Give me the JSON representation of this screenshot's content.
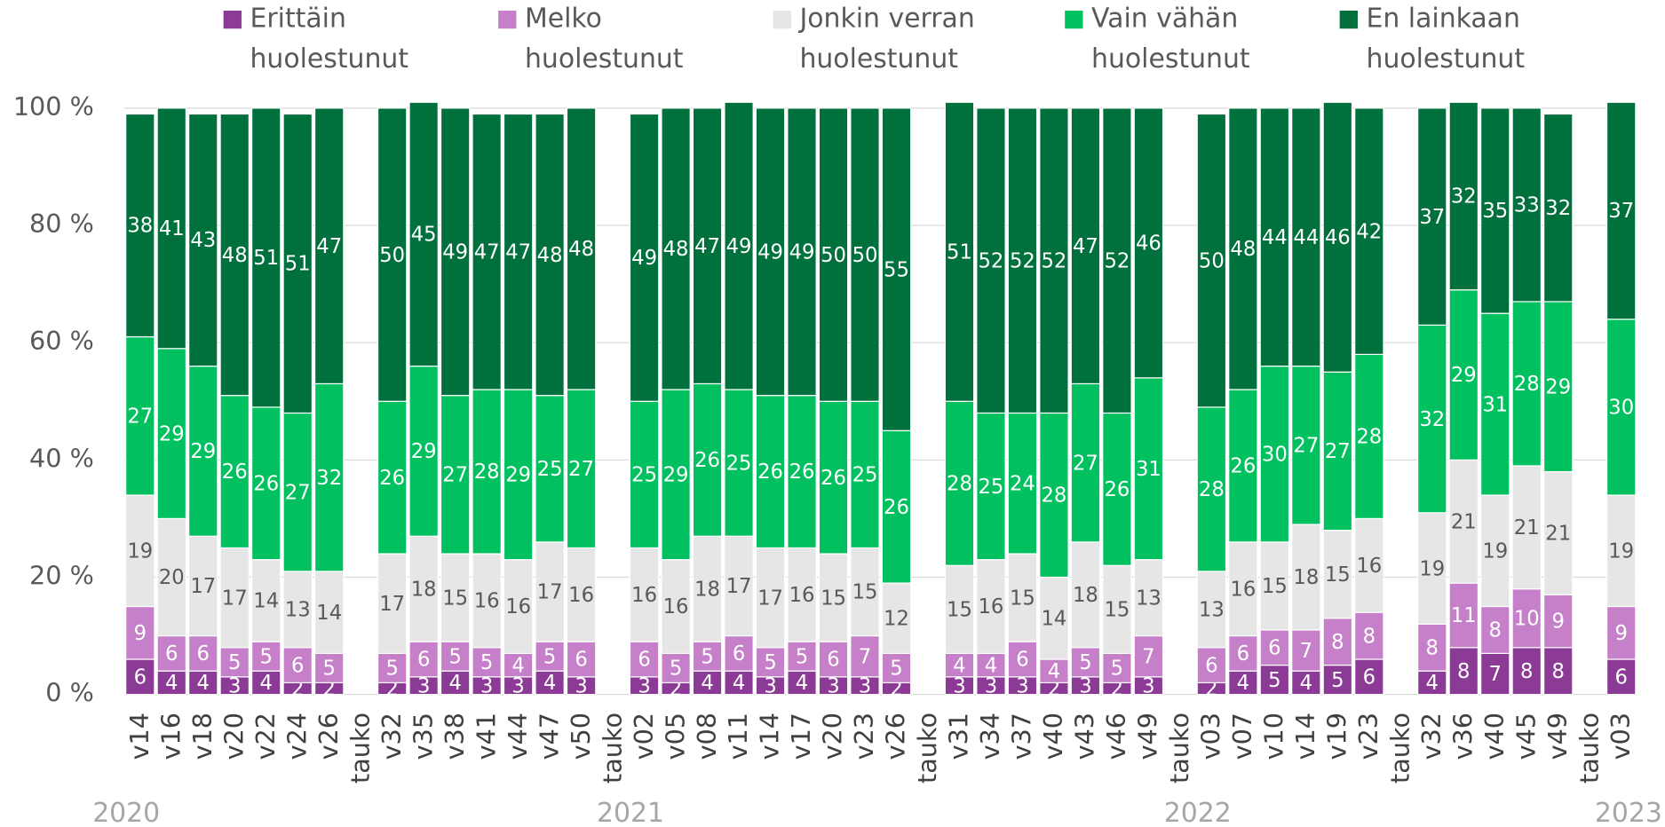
{
  "chart_data": {
    "type": "stacked_bar",
    "categories": [
      "v14",
      "v16",
      "v18",
      "v20",
      "v22",
      "v24",
      "v26",
      "tauko",
      "v32",
      "v35",
      "v38",
      "v41",
      "v44",
      "v47",
      "v50",
      "tauko",
      "v02",
      "v05",
      "v08",
      "v11",
      "v14",
      "v17",
      "v20",
      "v23",
      "v26",
      "tauko",
      "v31",
      "v34",
      "v37",
      "v40",
      "v43",
      "v46",
      "v49",
      "tauko",
      "v03",
      "v07",
      "v10",
      "v14",
      "v19",
      "v23",
      "tauko",
      "v32",
      "v36",
      "v40",
      "v45",
      "v49",
      "tauko",
      "v03"
    ],
    "year_labels": [
      "2020",
      "2021",
      "2022",
      "2023"
    ],
    "ylim": [
      0,
      100
    ],
    "yticks": [
      {
        "value": 0,
        "label": "0 %"
      },
      {
        "value": 20,
        "label": "20 %"
      },
      {
        "value": 40,
        "label": "40 %"
      },
      {
        "value": 60,
        "label": "60 %"
      },
      {
        "value": 80,
        "label": "80 %"
      },
      {
        "value": 100,
        "label": "100 %"
      }
    ],
    "grid": true,
    "legend": "top",
    "series": [
      {
        "name": "Erittäin huolestunut",
        "color": "#8b3a96",
        "values": [
          6,
          4,
          4,
          3,
          4,
          2,
          2,
          null,
          2,
          3,
          4,
          3,
          3,
          4,
          3,
          null,
          3,
          2,
          4,
          4,
          3,
          4,
          3,
          3,
          2,
          null,
          3,
          3,
          3,
          2,
          3,
          2,
          3,
          null,
          2,
          4,
          5,
          4,
          5,
          6,
          null,
          4,
          8,
          7,
          8,
          8,
          null,
          6
        ]
      },
      {
        "name": "Melko huolestunut",
        "color": "#c580c9",
        "values": [
          9,
          6,
          6,
          5,
          5,
          6,
          5,
          null,
          5,
          6,
          5,
          5,
          4,
          5,
          6,
          null,
          6,
          5,
          5,
          6,
          5,
          5,
          6,
          7,
          5,
          null,
          4,
          4,
          6,
          4,
          5,
          5,
          7,
          null,
          6,
          6,
          6,
          7,
          8,
          8,
          null,
          8,
          11,
          8,
          10,
          9,
          null,
          9
        ]
      },
      {
        "name": "Jonkin verran huolestunut",
        "color": "#e6e6e6",
        "values": [
          19,
          20,
          17,
          17,
          14,
          13,
          14,
          null,
          17,
          18,
          15,
          16,
          16,
          17,
          16,
          null,
          16,
          16,
          18,
          17,
          17,
          16,
          15,
          15,
          12,
          null,
          15,
          16,
          15,
          14,
          18,
          15,
          13,
          null,
          13,
          16,
          15,
          18,
          15,
          16,
          null,
          19,
          21,
          19,
          21,
          21,
          null,
          19
        ]
      },
      {
        "name": "Vain vähän huolestunut",
        "color": "#00c060",
        "values": [
          27,
          29,
          29,
          26,
          26,
          27,
          32,
          null,
          26,
          29,
          27,
          28,
          29,
          25,
          27,
          null,
          25,
          29,
          26,
          25,
          26,
          26,
          26,
          25,
          26,
          null,
          28,
          25,
          24,
          28,
          27,
          26,
          31,
          null,
          28,
          26,
          30,
          27,
          27,
          28,
          null,
          32,
          29,
          31,
          28,
          29,
          null,
          30
        ]
      },
      {
        "name": "En lainkaan huolestunut",
        "color": "#00703c",
        "values": [
          38,
          41,
          43,
          48,
          51,
          51,
          47,
          null,
          50,
          45,
          49,
          47,
          47,
          48,
          48,
          null,
          49,
          48,
          47,
          49,
          49,
          49,
          50,
          50,
          55,
          null,
          51,
          52,
          52,
          52,
          47,
          52,
          46,
          null,
          50,
          48,
          44,
          44,
          46,
          42,
          null,
          37,
          32,
          35,
          33,
          32,
          null,
          37
        ]
      }
    ]
  }
}
